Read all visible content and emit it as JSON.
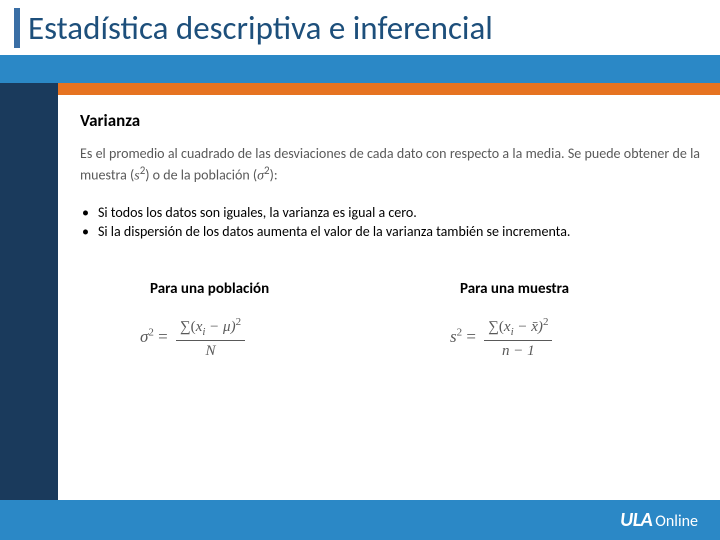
{
  "colors": {
    "title_accent": "#3a6ea5",
    "title_text": "#1d4f7b",
    "blue_band": "#2b88c6",
    "navy": "#1a3a5c",
    "orange": "#e67321",
    "body_gray": "#595959",
    "background": "#ffffff"
  },
  "title": "Estadística descriptiva e inferencial",
  "section": {
    "heading": "Varianza",
    "definition_pre": "Es el promedio al cuadrado de las desviaciones de cada dato con respecto a la media. Se puede obtener de la muestra (",
    "definition_mid": ") o de la población (",
    "definition_post": "):",
    "def_sym1_base": "s",
    "def_sym1_exp": "2",
    "def_sym2_base": "σ",
    "def_sym2_exp": "2",
    "bullets": [
      "Si todos los datos son iguales, la varianza es igual a cero.",
      "Si la dispersión de los datos aumenta el valor de la varianza también se incrementa."
    ]
  },
  "formulas": {
    "population": {
      "heading": "Para una población",
      "lhs_base": "σ",
      "lhs_exp": "2",
      "num_sum": "∑(",
      "num_xi_base": "x",
      "num_xi_sub": "i",
      "num_minus": " − μ)",
      "num_exp": "2",
      "den": "N"
    },
    "sample": {
      "heading": "Para una muestra",
      "lhs_base": "s",
      "lhs_exp": "2",
      "num_sum": "∑(",
      "num_xi_base": "x",
      "num_xi_sub": "i",
      "num_minus": " − x̄)",
      "num_exp": "2",
      "den": "n − 1"
    }
  },
  "footer": {
    "logo_main": "ULA",
    "logo_sub": "Online"
  }
}
